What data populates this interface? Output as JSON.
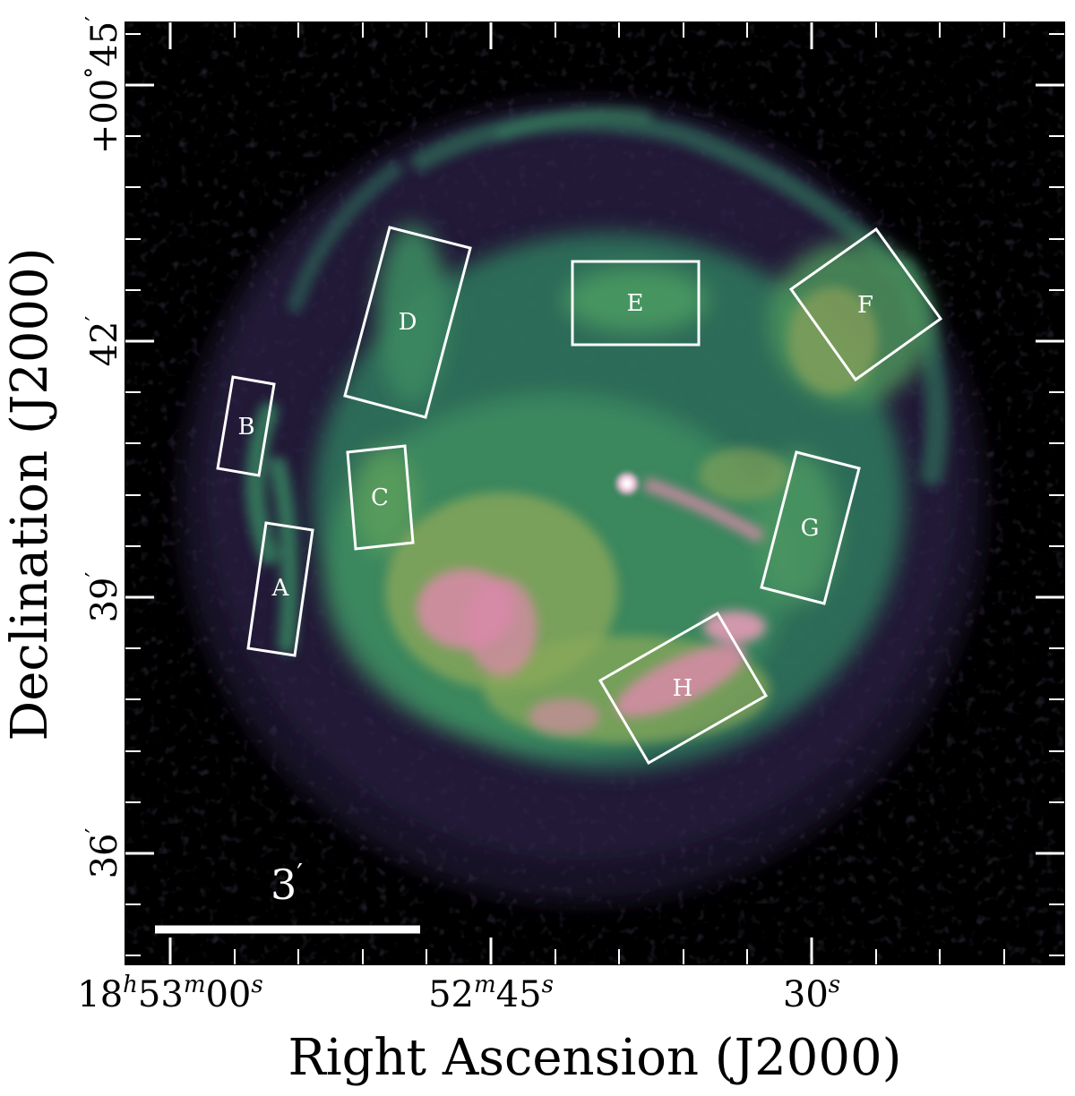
{
  "figure": {
    "xlabel": "Right Ascension (J2000)",
    "ylabel": "Declination (J2000)",
    "x_ticks": [
      {
        "h": "18",
        "m": "53",
        "s": "00"
      },
      {
        "m": "52",
        "s": "45"
      },
      {
        "s": "30"
      }
    ],
    "y_ticks": [
      {
        "sign": "+",
        "deg": "00",
        "arcmin": "45"
      },
      {
        "arcmin": "42"
      },
      {
        "arcmin": "39"
      },
      {
        "arcmin": "36"
      }
    ],
    "scale_bar": {
      "label": "3",
      "unit": "′"
    },
    "regions": [
      "A",
      "B",
      "C",
      "D",
      "E",
      "F",
      "G",
      "H"
    ],
    "colors": {
      "background": "#000000",
      "faint": "#3a2a55",
      "mid": "#2f7a5e",
      "bright": "#8aa85a",
      "peak": "#d98aa8",
      "overlay": "#ffffff"
    }
  }
}
